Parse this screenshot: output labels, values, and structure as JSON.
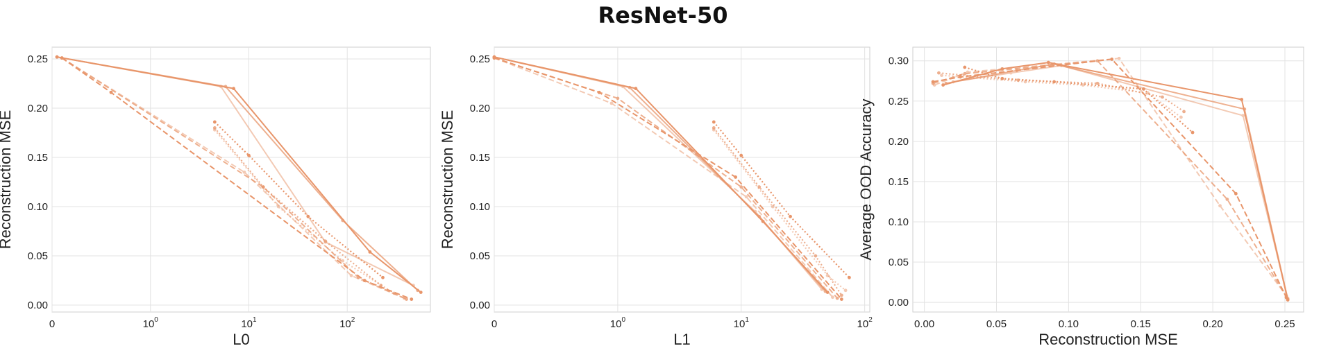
{
  "suptitle": "ResNet-50",
  "colors": {
    "series": "#e8956a",
    "grid": "#e3e3e3",
    "frame": "#cfcfcf"
  },
  "chart_data": [
    {
      "type": "line",
      "xlabel": "L0",
      "ylabel": "Reconstruction MSE",
      "xscale": "symlog",
      "xticks": [
        "0",
        "10^0",
        "10^1",
        "10^2"
      ],
      "yticks": [
        "0.00",
        "0.05",
        "0.10",
        "0.15",
        "0.20",
        "0.25"
      ],
      "xlim": [
        0,
        700
      ],
      "ylim": [
        -0.007,
        0.262
      ],
      "grid": true,
      "series": [
        {
          "style": "solid",
          "alpha": 1.0,
          "points": [
            [
              0.05,
              0.252
            ],
            [
              7.0,
              0.22
            ],
            [
              170,
              0.054
            ],
            [
              560,
              0.013
            ]
          ]
        },
        {
          "style": "solid",
          "alpha": 0.75,
          "points": [
            [
              0.05,
              0.252
            ],
            [
              5.8,
              0.222
            ],
            [
              90,
              0.086
            ],
            [
              520,
              0.015
            ]
          ]
        },
        {
          "style": "solid",
          "alpha": 0.5,
          "points": [
            [
              0.05,
              0.252
            ],
            [
              5.2,
              0.222
            ],
            [
              60,
              0.064
            ],
            [
              470,
              0.02
            ]
          ]
        },
        {
          "style": "dashed",
          "alpha": 1.0,
          "points": [
            [
              0.1,
              0.251
            ],
            [
              0.6,
              0.216
            ],
            [
              150,
              0.025
            ],
            [
              450,
              0.006
            ]
          ]
        },
        {
          "style": "dashed",
          "alpha": 0.75,
          "points": [
            [
              0.1,
              0.251
            ],
            [
              14,
              0.12
            ],
            [
              130,
              0.028
            ],
            [
              400,
              0.006
            ]
          ]
        },
        {
          "style": "dashed",
          "alpha": 0.5,
          "points": [
            [
              0.1,
              0.251
            ],
            [
              9,
              0.135
            ],
            [
              110,
              0.03
            ],
            [
              380,
              0.007
            ]
          ]
        },
        {
          "style": "dotted",
          "alpha": 1.0,
          "points": [
            [
              4.5,
              0.186
            ],
            [
              10,
              0.152
            ],
            [
              40,
              0.09
            ],
            [
              230,
              0.028
            ]
          ]
        },
        {
          "style": "dotted",
          "alpha": 0.75,
          "points": [
            [
              4.5,
              0.18
            ],
            [
              14,
              0.12
            ],
            [
              60,
              0.065
            ],
            [
              220,
              0.02
            ]
          ]
        },
        {
          "style": "dotted",
          "alpha": 0.5,
          "points": [
            [
              4.5,
              0.178
            ],
            [
              20,
              0.1
            ],
            [
              90,
              0.045
            ],
            [
              300,
              0.012
            ]
          ]
        }
      ]
    },
    {
      "type": "line",
      "xlabel": "L1",
      "ylabel": "Reconstruction MSE",
      "xscale": "symlog",
      "xticks": [
        "0",
        "10^0",
        "10^1",
        "10^2"
      ],
      "yticks": [
        "0.00",
        "0.05",
        "0.10",
        "0.15",
        "0.20",
        "0.25"
      ],
      "xlim": [
        0,
        110
      ],
      "ylim": [
        -0.007,
        0.262
      ],
      "grid": true,
      "series": [
        {
          "style": "solid",
          "alpha": 1.0,
          "points": [
            [
              0.0,
              0.252
            ],
            [
              1.4,
              0.22
            ],
            [
              15,
              0.085
            ],
            [
              50,
              0.013
            ]
          ]
        },
        {
          "style": "solid",
          "alpha": 0.75,
          "points": [
            [
              0.0,
              0.252
            ],
            [
              1.25,
              0.221
            ],
            [
              14,
              0.09
            ],
            [
              48,
              0.014
            ]
          ]
        },
        {
          "style": "solid",
          "alpha": 0.5,
          "points": [
            [
              0.0,
              0.252
            ],
            [
              1.1,
              0.222
            ],
            [
              13,
              0.095
            ],
            [
              45,
              0.016
            ]
          ]
        },
        {
          "style": "dashed",
          "alpha": 1.0,
          "points": [
            [
              0.0,
              0.251
            ],
            [
              0.85,
              0.216
            ],
            [
              9,
              0.13
            ],
            [
              65,
              0.006
            ]
          ]
        },
        {
          "style": "dashed",
          "alpha": 0.75,
          "points": [
            [
              0.0,
              0.251
            ],
            [
              1.0,
              0.21
            ],
            [
              10,
              0.12
            ],
            [
              60,
              0.007
            ]
          ]
        },
        {
          "style": "dashed",
          "alpha": 0.5,
          "points": [
            [
              0.0,
              0.251
            ],
            [
              0.95,
              0.205
            ],
            [
              11,
              0.11
            ],
            [
              55,
              0.008
            ]
          ]
        },
        {
          "style": "dotted",
          "alpha": 1.0,
          "points": [
            [
              6,
              0.186
            ],
            [
              10,
              0.152
            ],
            [
              25,
              0.09
            ],
            [
              75,
              0.028
            ]
          ]
        },
        {
          "style": "dotted",
          "alpha": 0.75,
          "points": [
            [
              6,
              0.18
            ],
            [
              14,
              0.12
            ],
            [
              40,
              0.05
            ],
            [
              65,
              0.01
            ]
          ]
        },
        {
          "style": "dotted",
          "alpha": 0.5,
          "points": [
            [
              6,
              0.178
            ],
            [
              18,
              0.1
            ],
            [
              50,
              0.03
            ],
            [
              70,
              0.015
            ]
          ]
        }
      ]
    },
    {
      "type": "line",
      "xlabel": "Reconstruction MSE",
      "ylabel": "Average OOD Accuracy",
      "xscale": "linear",
      "xticks": [
        "0.00",
        "0.05",
        "0.10",
        "0.15",
        "0.20",
        "0.25"
      ],
      "yticks": [
        "0.00",
        "0.05",
        "0.10",
        "0.15",
        "0.20",
        "0.25",
        "0.30"
      ],
      "xlim": [
        -0.008,
        0.263
      ],
      "ylim": [
        -0.012,
        0.317
      ],
      "grid": true,
      "series": [
        {
          "style": "solid",
          "alpha": 1.0,
          "points": [
            [
              0.013,
              0.27
            ],
            [
              0.054,
              0.29
            ],
            [
              0.086,
              0.298
            ],
            [
              0.22,
              0.252
            ],
            [
              0.252,
              0.003
            ]
          ]
        },
        {
          "style": "solid",
          "alpha": 0.75,
          "points": [
            [
              0.015,
              0.272
            ],
            [
              0.064,
              0.288
            ],
            [
              0.09,
              0.296
            ],
            [
              0.222,
              0.24
            ],
            [
              0.252,
              0.004
            ]
          ]
        },
        {
          "style": "solid",
          "alpha": 0.5,
          "points": [
            [
              0.02,
              0.274
            ],
            [
              0.06,
              0.285
            ],
            [
              0.095,
              0.294
            ],
            [
              0.221,
              0.232
            ],
            [
              0.252,
              0.005
            ]
          ]
        },
        {
          "style": "dashed",
          "alpha": 1.0,
          "points": [
            [
              0.006,
              0.274
            ],
            [
              0.025,
              0.28
            ],
            [
              0.13,
              0.302
            ],
            [
              0.216,
              0.135
            ],
            [
              0.251,
              0.006
            ]
          ]
        },
        {
          "style": "dashed",
          "alpha": 0.75,
          "points": [
            [
              0.006,
              0.272
            ],
            [
              0.028,
              0.284
            ],
            [
              0.12,
              0.3
            ],
            [
              0.21,
              0.128
            ],
            [
              0.251,
              0.007
            ]
          ]
        },
        {
          "style": "dashed",
          "alpha": 0.5,
          "points": [
            [
              0.007,
              0.27
            ],
            [
              0.03,
              0.286
            ],
            [
              0.135,
              0.303
            ],
            [
              0.205,
              0.12
            ],
            [
              0.251,
              0.008
            ]
          ]
        },
        {
          "style": "dotted",
          "alpha": 1.0,
          "points": [
            [
              0.028,
              0.292
            ],
            [
              0.054,
              0.278
            ],
            [
              0.09,
              0.274
            ],
            [
              0.152,
              0.265
            ],
            [
              0.186,
              0.211
            ]
          ]
        },
        {
          "style": "dotted",
          "alpha": 0.75,
          "points": [
            [
              0.01,
              0.285
            ],
            [
              0.065,
              0.276
            ],
            [
              0.12,
              0.272
            ],
            [
              0.165,
              0.255
            ],
            [
              0.18,
              0.237
            ]
          ]
        },
        {
          "style": "dotted",
          "alpha": 0.5,
          "points": [
            [
              0.012,
              0.282
            ],
            [
              0.07,
              0.274
            ],
            [
              0.11,
              0.27
            ],
            [
              0.155,
              0.26
            ],
            [
              0.178,
              0.23
            ]
          ]
        }
      ]
    }
  ]
}
